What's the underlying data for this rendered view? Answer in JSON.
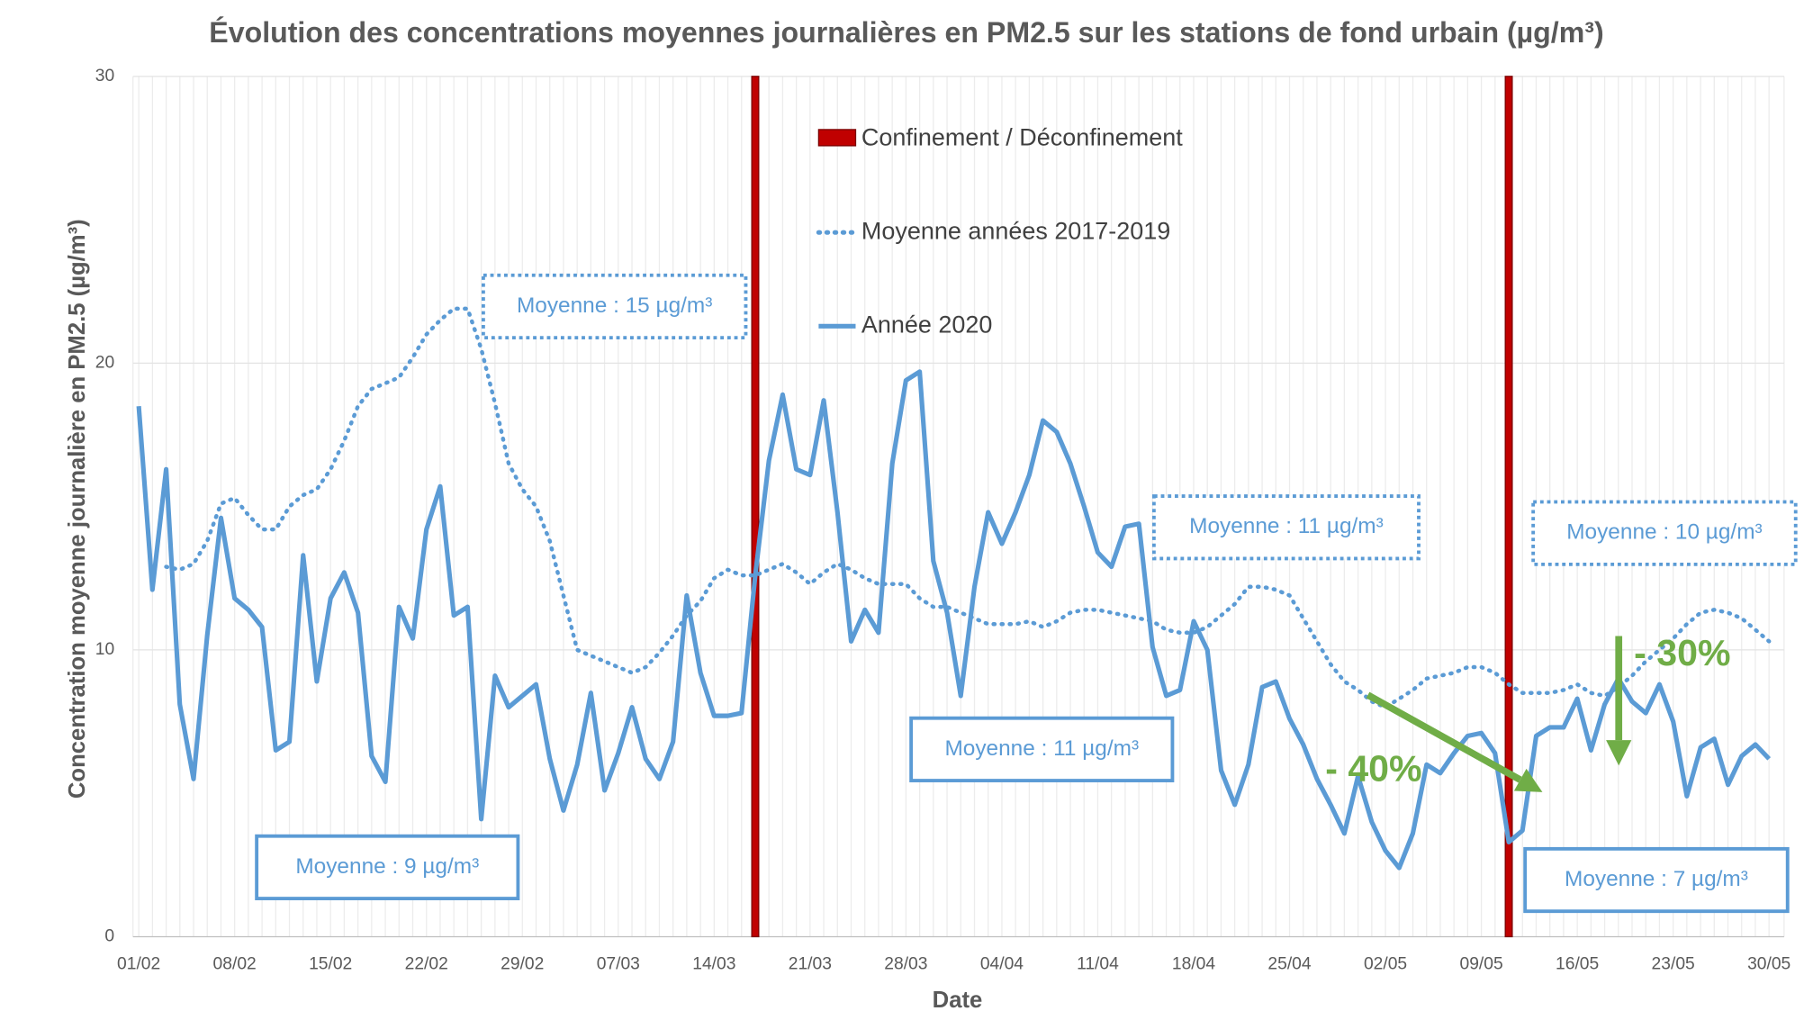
{
  "chart_data": {
    "type": "line",
    "title": "Évolution des concentrations moyennes journalières en PM2.5 sur les stations de fond urbain (µg/m³)",
    "x_label": "Date",
    "y_label": "Concentration moyenne journalière en PM2.5 (µg/m³)",
    "categories": [
      "01/02",
      null,
      null,
      null,
      null,
      null,
      null,
      "08/02",
      null,
      null,
      null,
      null,
      null,
      null,
      "15/02",
      null,
      null,
      null,
      null,
      null,
      null,
      "22/02",
      null,
      null,
      null,
      null,
      null,
      null,
      "29/02",
      null,
      null,
      null,
      null,
      null,
      null,
      "07/03",
      null,
      null,
      null,
      null,
      null,
      null,
      "14/03",
      null,
      null,
      null,
      null,
      null,
      null,
      "21/03",
      null,
      null,
      null,
      null,
      null,
      null,
      "28/03",
      null,
      null,
      null,
      null,
      null,
      null,
      "04/04",
      null,
      null,
      null,
      null,
      null,
      null,
      "11/04",
      null,
      null,
      null,
      null,
      null,
      null,
      "18/04",
      null,
      null,
      null,
      null,
      null,
      null,
      "25/04",
      null,
      null,
      null,
      null,
      null,
      null,
      "02/05",
      null,
      null,
      null,
      null,
      null,
      null,
      "09/05",
      null,
      null,
      null,
      null,
      null,
      null,
      "16/05",
      null,
      null,
      null,
      null,
      null,
      null,
      "23/05",
      null,
      null,
      null,
      null,
      null,
      null,
      "30/05"
    ],
    "series": [
      {
        "name": "Moyenne années 2017-2019",
        "color": "#5b9bd5",
        "dash": "dotted",
        "values": [
          null,
          null,
          12.9,
          12.8,
          13,
          13.8,
          15.1,
          15.3,
          14.7,
          14.2,
          14.2,
          15.0,
          15.4,
          15.6,
          16.3,
          17.3,
          18.5,
          19.1,
          19.3,
          19.5,
          20.2,
          21.0,
          21.5,
          21.9,
          21.9,
          20.5,
          18.6,
          16.5,
          15.6,
          15.0,
          13.8,
          11.9,
          10.0,
          9.8,
          9.6,
          9.4,
          9.2,
          9.4,
          9.9,
          10.5,
          11.2,
          11.7,
          12.5,
          12.8,
          12.6,
          12.6,
          12.8,
          13.0,
          12.7,
          12.3,
          12.7,
          13.0,
          12.8,
          12.5,
          12.3,
          12.3,
          12.3,
          11.8,
          11.5,
          11.5,
          11.3,
          11.1,
          10.9,
          10.9,
          10.9,
          11.0,
          10.8,
          11.0,
          11.3,
          11.4,
          11.4,
          11.3,
          11.2,
          11.1,
          11.0,
          10.7,
          10.6,
          10.6,
          10.8,
          11.2,
          11.6,
          12.2,
          12.2,
          12.1,
          11.9,
          11.1,
          10.3,
          9.5,
          8.9,
          8.6,
          8.2,
          8.0,
          8.3,
          8.6,
          9.0,
          9.1,
          9.2,
          9.4,
          9.4,
          9.2,
          8.8,
          8.5,
          8.5,
          8.5,
          8.6,
          8.8,
          8.5,
          8.4,
          8.7,
          9.1,
          9.6,
          10.0,
          10.4,
          10.9,
          11.3,
          11.4,
          11.3,
          11.1,
          10.7,
          10.3
        ]
      },
      {
        "name": "Année 2020",
        "color": "#5b9bd5",
        "dash": "solid",
        "values": [
          18.5,
          12.1,
          16.3,
          8.1,
          5.5,
          10.5,
          14.6,
          11.8,
          11.4,
          10.8,
          6.5,
          6.8,
          13.3,
          8.9,
          11.8,
          12.7,
          11.3,
          6.3,
          5.4,
          11.5,
          10.4,
          14.2,
          15.7,
          11.2,
          11.5,
          4.1,
          9.1,
          8.0,
          8.4,
          8.8,
          6.2,
          4.4,
          6.0,
          8.5,
          5.1,
          6.4,
          8.0,
          6.2,
          5.5,
          6.8,
          11.9,
          9.2,
          7.7,
          7.7,
          7.8,
          12.6,
          16.6,
          18.9,
          16.3,
          16.1,
          18.7,
          14.8,
          10.3,
          11.4,
          10.6,
          16.5,
          19.4,
          19.7,
          13.1,
          11.3,
          8.4,
          12.2,
          14.8,
          13.7,
          14.8,
          16.1,
          18.0,
          17.6,
          16.5,
          15.0,
          13.4,
          12.9,
          14.3,
          14.4,
          10.1,
          8.4,
          8.6,
          11.0,
          10.0,
          5.8,
          4.6,
          6.0,
          8.7,
          8.9,
          7.6,
          6.7,
          5.5,
          4.6,
          3.6,
          5.6,
          4.0,
          3.0,
          2.4,
          3.6,
          6.0,
          5.7,
          6.4,
          7.0,
          7.1,
          6.4,
          3.3,
          3.7,
          7.0,
          7.3,
          7.3,
          8.3,
          6.5,
          8.1,
          9.0,
          8.2,
          7.8,
          8.8,
          7.5,
          4.9,
          6.6,
          6.9,
          5.3,
          6.3,
          6.7,
          6.2
        ]
      }
    ],
    "events": {
      "name": "Confinement / Déconfinement",
      "color": "#c00000",
      "dates": [
        "17/03",
        "11/05"
      ]
    },
    "annotations": [
      {
        "text": "Moyenne : 15 µg/m³",
        "series": 0
      },
      {
        "text": "Moyenne : 11 µg/m³",
        "series": 0
      },
      {
        "text": "Moyenne : 10 µg/m³",
        "series": 0
      },
      {
        "text": "Moyenne : 9 µg/m³",
        "series": 1
      },
      {
        "text": "Moyenne : 11 µg/m³",
        "series": 1
      },
      {
        "text": "Moyenne : 7 µg/m³",
        "series": 1
      },
      {
        "text": "- 40%",
        "color": "#70ad47"
      },
      {
        "text": "- 30%",
        "color": "#70ad47"
      }
    ],
    "ylim": [
      0,
      30
    ],
    "yticks": [
      0,
      10,
      20,
      30
    ],
    "grid": true,
    "legend": "top"
  }
}
